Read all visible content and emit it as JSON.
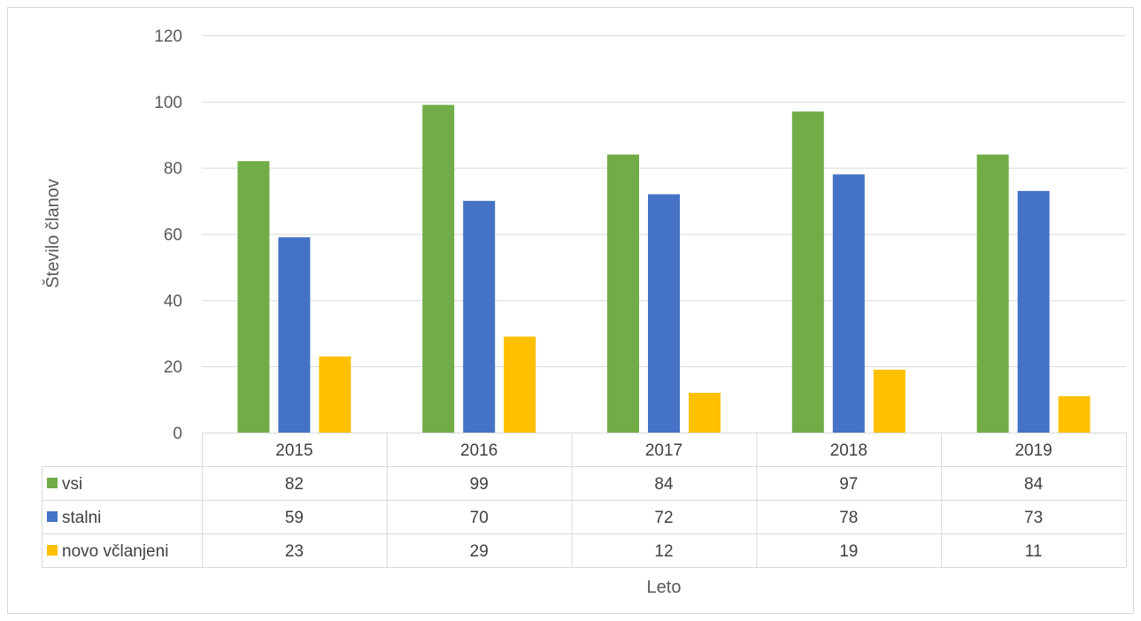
{
  "chart_data": {
    "type": "bar",
    "categories": [
      "2015",
      "2016",
      "2017",
      "2018",
      "2019"
    ],
    "series": [
      {
        "name": "vsi",
        "color": "#70AD47",
        "values": [
          82,
          99,
          84,
          97,
          84
        ]
      },
      {
        "name": "stalni",
        "color": "#4472C4",
        "values": [
          59,
          70,
          72,
          78,
          73
        ]
      },
      {
        "name": "novo včlanjeni",
        "color": "#FFC000",
        "values": [
          23,
          29,
          12,
          19,
          11
        ]
      }
    ],
    "title": "",
    "xlabel": "Leto",
    "ylabel": "Število članov",
    "ylim": [
      0,
      120
    ],
    "yticks": [
      0,
      20,
      40,
      60,
      80,
      100,
      120
    ],
    "grid": true,
    "legend": "data-table"
  }
}
